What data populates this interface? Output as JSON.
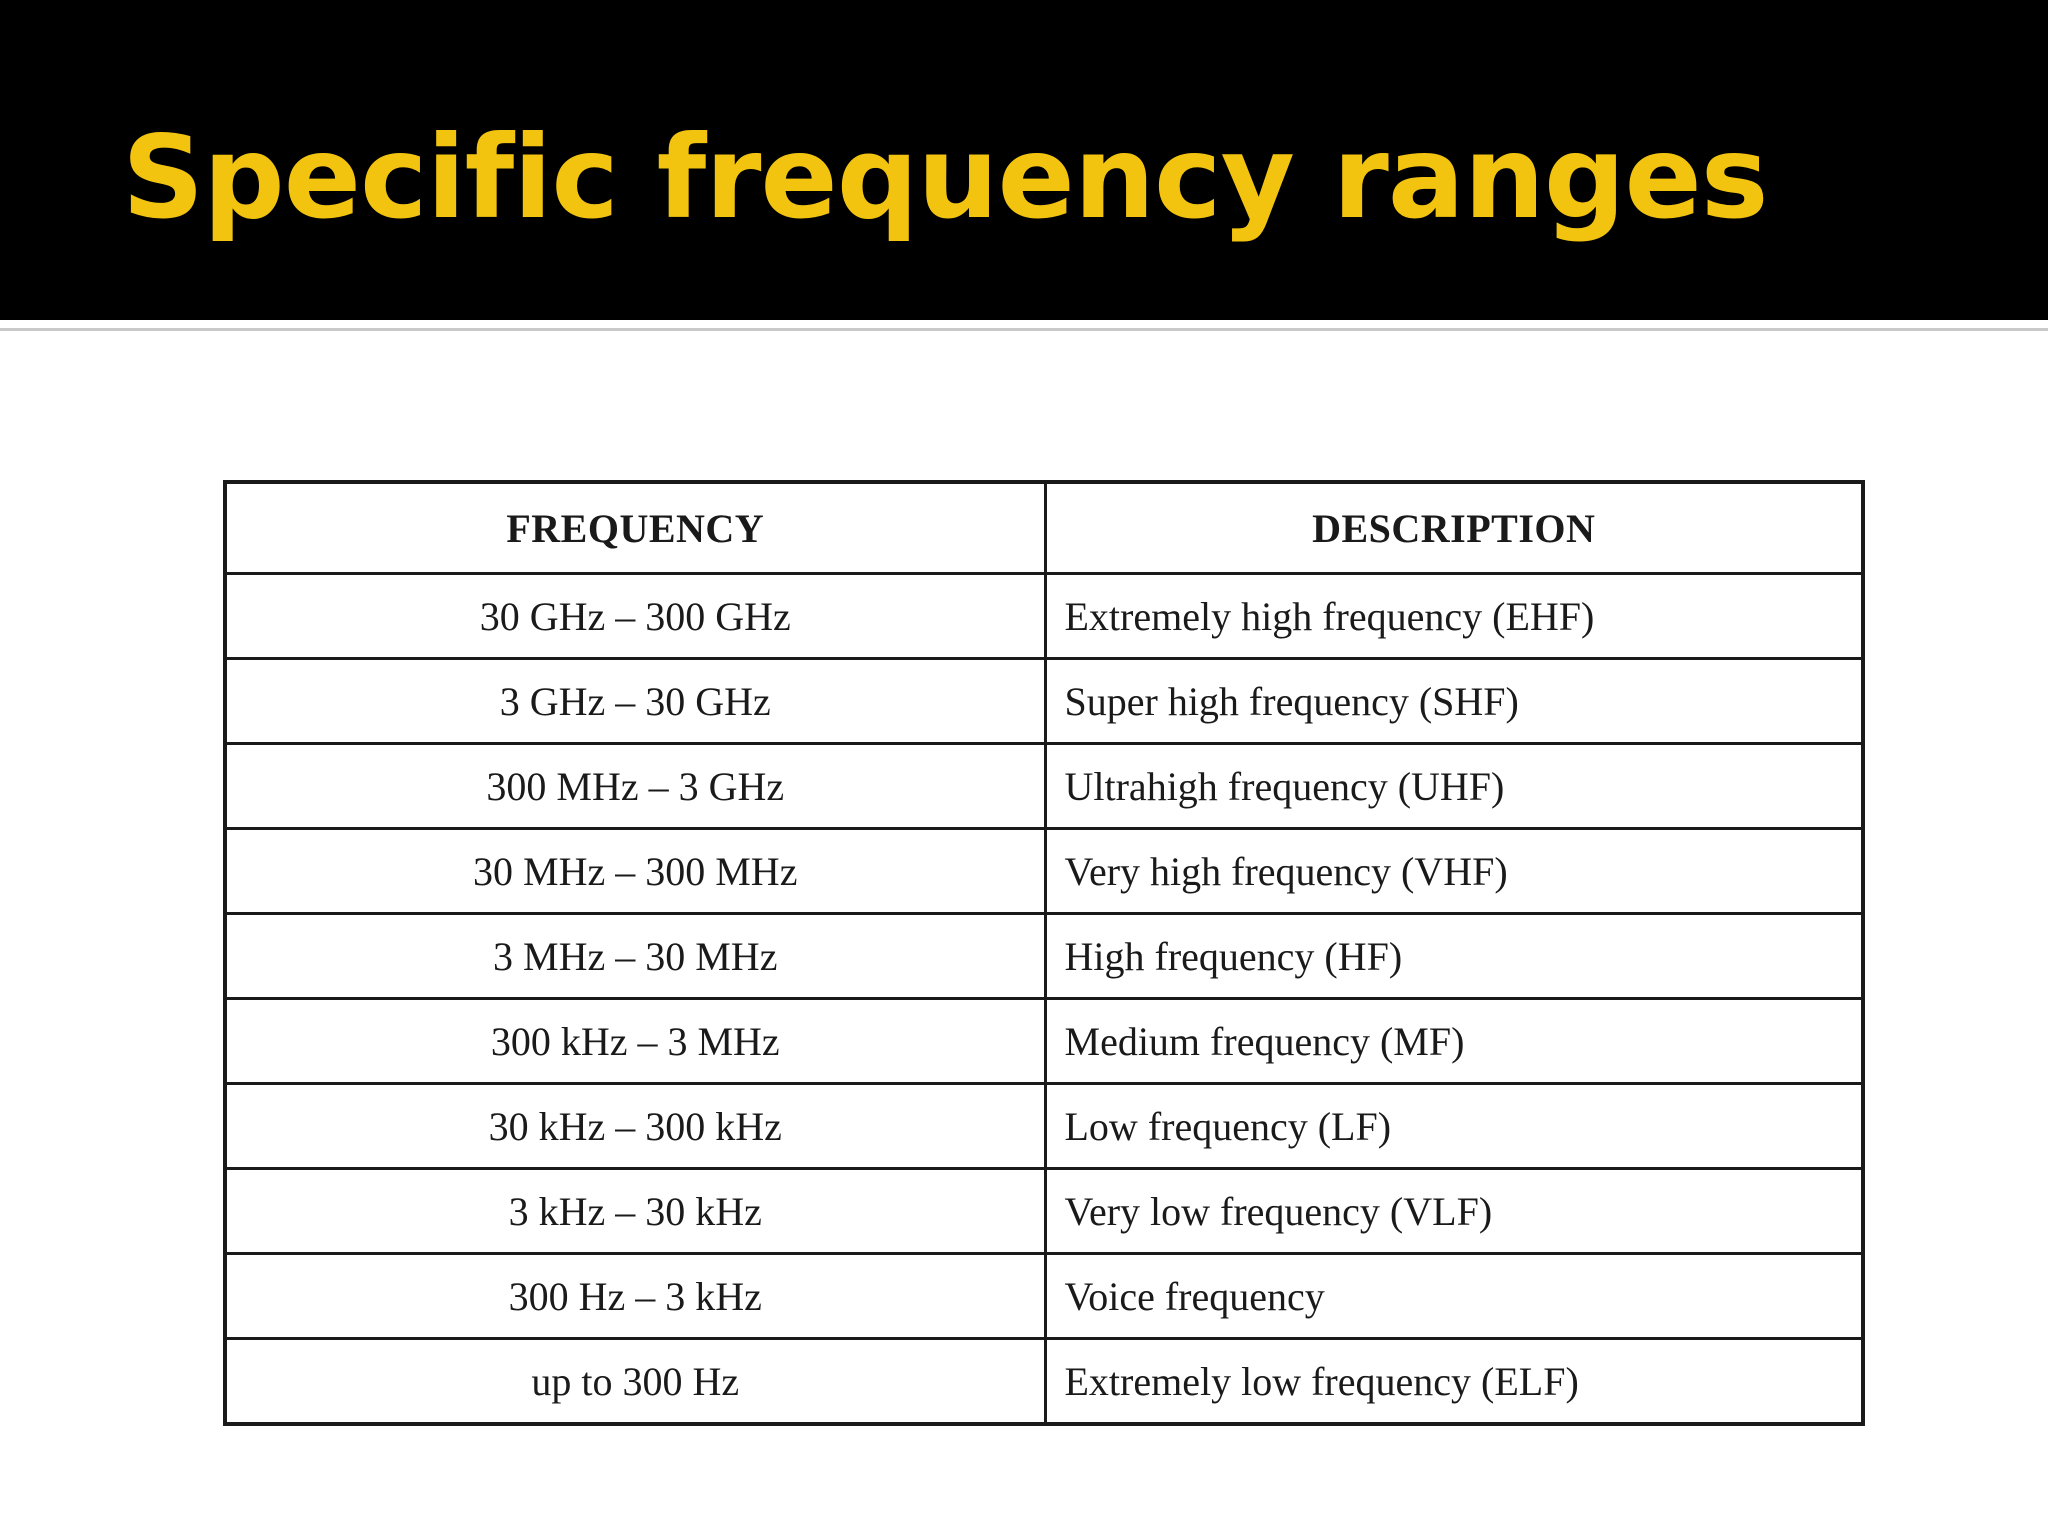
{
  "slide": {
    "title": "Specific frequency ranges",
    "colors": {
      "title_bar": "#000000",
      "title_text": "#f2c40f",
      "background": "#ffffff",
      "table_lines": "#1a1a1a"
    }
  },
  "table": {
    "headers": {
      "frequency": "FREQUENCY",
      "description": "DESCRIPTION"
    },
    "rows": [
      {
        "frequency": "30 GHz – 300 GHz",
        "description": "Extremely high frequency (EHF)"
      },
      {
        "frequency": "3 GHz – 30 GHz",
        "description": "Super high frequency (SHF)"
      },
      {
        "frequency": "300 MHz – 3 GHz",
        "description": "Ultrahigh frequency (UHF)"
      },
      {
        "frequency": "30 MHz – 300 MHz",
        "description": "Very high frequency (VHF)"
      },
      {
        "frequency": "3 MHz – 30 MHz",
        "description": "High frequency (HF)"
      },
      {
        "frequency": "300 kHz – 3 MHz",
        "description": "Medium frequency (MF)"
      },
      {
        "frequency": "30 kHz – 300 kHz",
        "description": "Low frequency (LF)"
      },
      {
        "frequency": "3 kHz – 30 kHz",
        "description": "Very low frequency (VLF)"
      },
      {
        "frequency": "300 Hz – 3 kHz",
        "description": "Voice frequency"
      },
      {
        "frequency": "up to 300 Hz",
        "description": "Extremely low frequency (ELF)"
      }
    ]
  }
}
